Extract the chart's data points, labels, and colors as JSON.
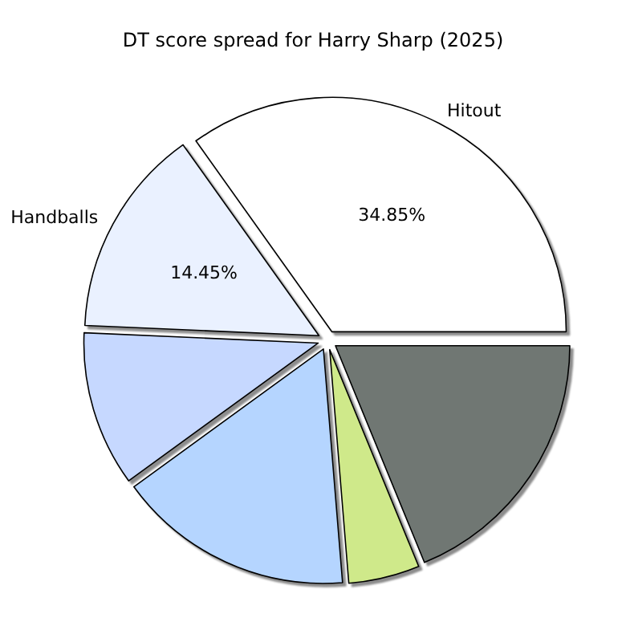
{
  "chart_data": {
    "type": "pie",
    "title": "DT score spread for Harry Sharp (2025)",
    "categories": [
      "Hitout",
      "Handballs",
      null,
      null,
      null,
      null
    ],
    "values": [
      34.85,
      14.45,
      10.7,
      16.3,
      4.9,
      18.8
    ],
    "value_labels": [
      "34.85%",
      "14.45%",
      null,
      null,
      null,
      null
    ],
    "colors": [
      "#ffffff",
      "#eaf1ff",
      "#c6d8ff",
      "#b5d5ff",
      "#cfe98a",
      "#6f7773"
    ],
    "legend": false
  }
}
